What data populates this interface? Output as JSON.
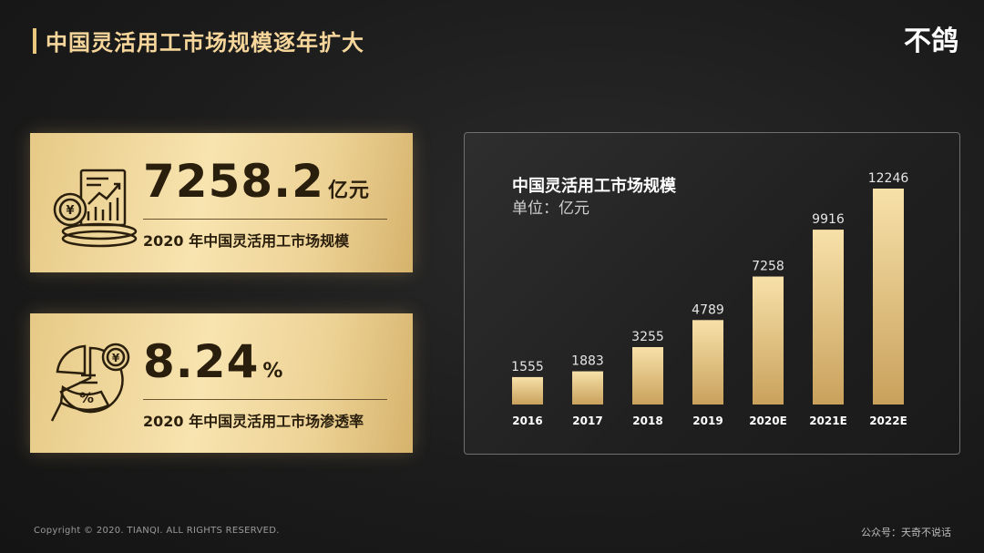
{
  "page_title": "中国灵活用工市场规模逐年扩大",
  "logo_text": "不鸽",
  "colors": {
    "gold": "#e8c77d",
    "bar_top": "#f7e1a9",
    "bar_bottom": "#c9a15c"
  },
  "card1": {
    "value": "7258.2",
    "unit": "亿元",
    "caption": "2020 年中国灵活用工市场规模",
    "icon": "money-chart-icon"
  },
  "card2": {
    "value": "8.24",
    "unit": "%",
    "caption": "2020 年中国灵活用工市场渗透率",
    "icon": "pie-percent-icon"
  },
  "chart_data": {
    "type": "bar",
    "title": "中国灵活用工市场规模",
    "subtitle": "单位：亿元",
    "categories": [
      "2016",
      "2017",
      "2018",
      "2019",
      "2020E",
      "2021E",
      "2022E"
    ],
    "values": [
      1555,
      1883,
      3255,
      4789,
      7258,
      9916,
      12246
    ],
    "ylim": [
      0,
      12246
    ],
    "grid": false,
    "data_labels": true
  },
  "footer": {
    "copyright": "Copyright © 2020. TIANQI. ALL RIGHTS RESERVED.",
    "account": "公众号：天奇不说话"
  }
}
